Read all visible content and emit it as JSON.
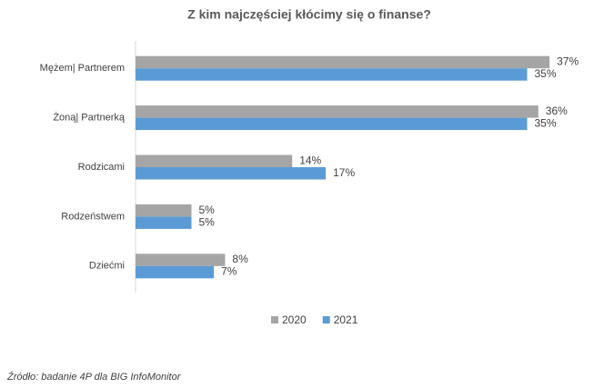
{
  "chart_data": {
    "type": "bar",
    "orientation": "horizontal",
    "title": "Z kim najczęściej kłócimy się o finanse?",
    "categories": [
      "Mężem| Partnerem",
      "Żoną| Partnerką",
      "Rodzicami",
      "Rodzeństwem",
      "Dziećmi"
    ],
    "series": [
      {
        "name": "2020",
        "color": "#a5a5a5",
        "values": [
          37,
          36,
          14,
          5,
          8
        ],
        "value_labels": [
          "37%",
          "36%",
          "14%",
          "5%",
          "8%"
        ]
      },
      {
        "name": "2021",
        "color": "#5b9bd5",
        "values": [
          35,
          35,
          17,
          5,
          7
        ],
        "value_labels": [
          "35%",
          "35%",
          "17%",
          "5%",
          "7%"
        ]
      }
    ],
    "xlim": [
      0,
      40
    ],
    "legend": "bottom",
    "source": "Źródło: badanie 4P dla BIG InfoMonitor"
  }
}
